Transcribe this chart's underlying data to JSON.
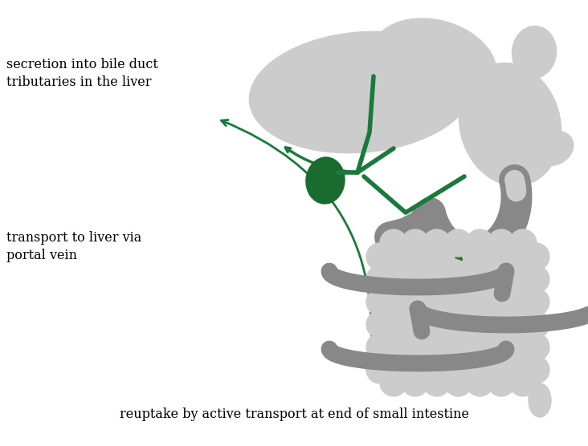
{
  "bg_color": "#ffffff",
  "organ_color_light": "#cccccc",
  "organ_color_dark": "#888888",
  "green": "#1a7a3a",
  "gallbladder_color": "#1a6b30",
  "text_color": "#000000",
  "label_top_left": "secretion into bile duct\ntributaries in the liver",
  "label_mid_left": "transport to liver via\nportal vein",
  "label_bottom": "reuptake by active transport at end of small intestine",
  "figsize": [
    7.32,
    5.56
  ],
  "dpi": 100
}
